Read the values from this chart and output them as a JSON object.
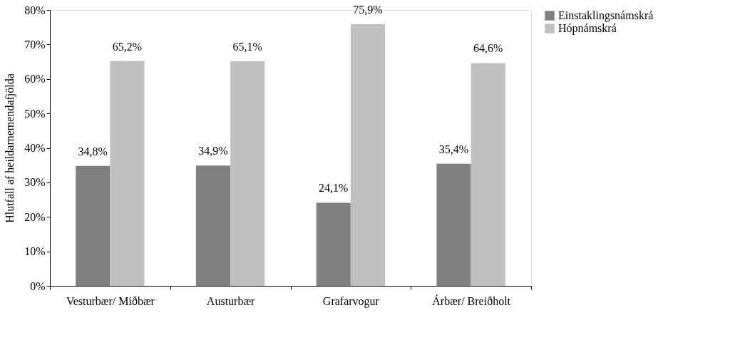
{
  "chart_data": {
    "type": "bar",
    "ylabel": "Hlutfall af heildarnemendafjölda",
    "categories": [
      "Vesturbær/ Miðbær",
      "Austurbær",
      "Grafarvogur",
      "Árbær/ Breiðholt"
    ],
    "series": [
      {
        "name": "Einstaklingsnámskrá",
        "color": "#808080",
        "values": [
          34.8,
          34.9,
          24.1,
          35.4
        ],
        "value_labels": [
          "34,8%",
          "34,9%",
          "24,1%",
          "35,4%"
        ]
      },
      {
        "name": "Hópnámskrá",
        "color": "#c0c0c0",
        "values": [
          65.2,
          65.1,
          75.9,
          64.6
        ],
        "value_labels": [
          "65,2%",
          "65,1%",
          "75,9%",
          "64,6%"
        ]
      }
    ],
    "ylim": [
      0,
      80
    ],
    "yticks": [
      {
        "value": 0,
        "label": "0%"
      },
      {
        "value": 10,
        "label": "10%"
      },
      {
        "value": 20,
        "label": "20%"
      },
      {
        "value": 30,
        "label": "30%"
      },
      {
        "value": 40,
        "label": "40%"
      },
      {
        "value": 50,
        "label": "50%"
      },
      {
        "value": 60,
        "label": "60%"
      },
      {
        "value": 70,
        "label": "70%"
      },
      {
        "value": 80,
        "label": "80%"
      }
    ],
    "grid": false,
    "legend": "right"
  }
}
